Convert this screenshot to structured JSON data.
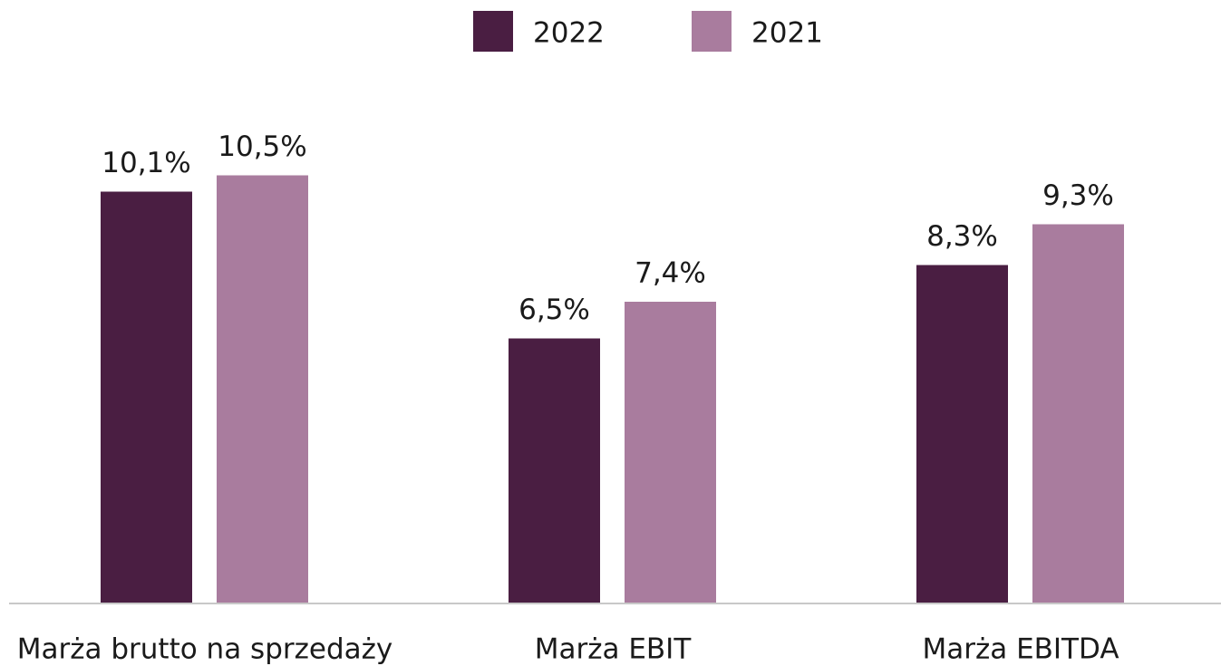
{
  "chart_data": {
    "type": "bar",
    "categories": [
      "Marża brutto na sprzedaży",
      "Marża EBIT",
      "Marża EBITDA"
    ],
    "series": [
      {
        "name": "2022",
        "color": "#4a1e42",
        "values": [
          10.1,
          6.5,
          8.3
        ],
        "value_labels": [
          "10,1%",
          "6,5%",
          "8,3%"
        ]
      },
      {
        "name": "2021",
        "color": "#a97c9e",
        "values": [
          10.5,
          7.4,
          9.3
        ],
        "value_labels": [
          "10,5%",
          "7,4%",
          "9,3%"
        ]
      }
    ],
    "legend": "top"
  }
}
